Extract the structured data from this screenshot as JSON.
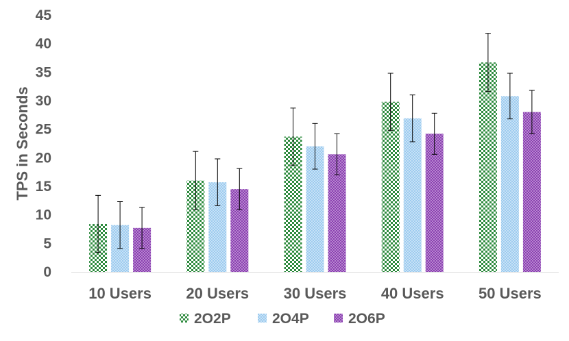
{
  "chart_data": {
    "type": "bar",
    "title": "",
    "xlabel": "",
    "ylabel": "TPS in Seconds",
    "ylim": [
      0,
      45
    ],
    "ytick_step": 5,
    "yticks": [
      "0",
      "5",
      "10",
      "15",
      "20",
      "25",
      "30",
      "35",
      "40",
      "45"
    ],
    "grid": false,
    "legend_position": "bottom",
    "categories": [
      "10 Users",
      "20 Users",
      "30 Users",
      "40 Users",
      "50 Users"
    ],
    "series": [
      {
        "name": "2O2P",
        "color": "#2e8b3e",
        "pattern": "checker",
        "values": [
          8.4,
          16.0,
          23.7,
          29.8,
          36.7
        ],
        "error": [
          5.0,
          5.1,
          5.0,
          5.0,
          5.1
        ]
      },
      {
        "name": "2O4P",
        "color": "#56a8e0",
        "pattern": "dots",
        "values": [
          8.2,
          15.7,
          22.0,
          26.9,
          30.8
        ],
        "error": [
          4.1,
          4.1,
          4.0,
          4.1,
          4.0
        ]
      },
      {
        "name": "2O6P",
        "color": "#8a3fb0",
        "pattern": "dots",
        "values": [
          7.7,
          14.5,
          20.6,
          24.2,
          28.0
        ],
        "error": [
          3.6,
          3.6,
          3.6,
          3.6,
          3.8
        ]
      }
    ]
  }
}
